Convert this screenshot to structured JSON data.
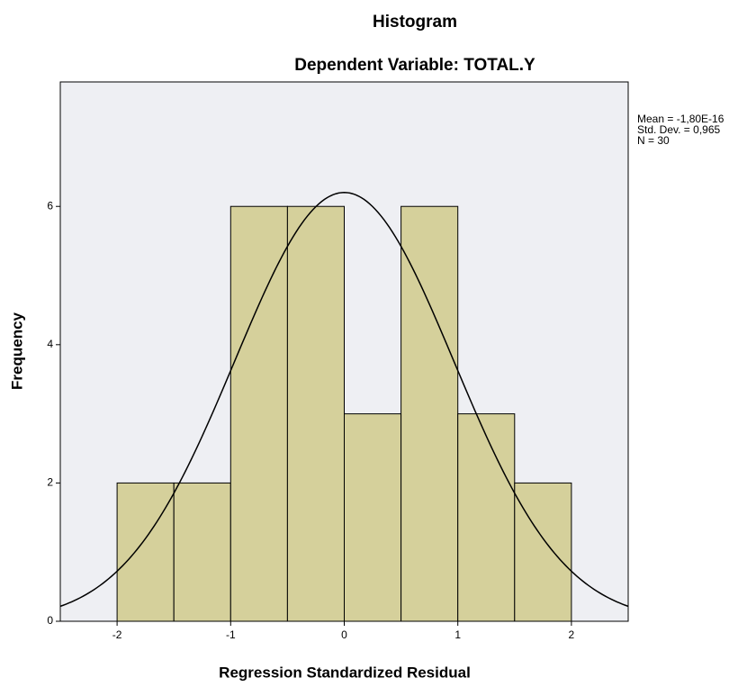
{
  "chart_data": {
    "type": "histogram",
    "title": "Histogram",
    "subtitle": "Dependent Variable: TOTAL.Y",
    "x_label": "Regression Standardized Residual",
    "y_label": "Frequency",
    "bins": [
      -2,
      -1.5,
      -1,
      -0.5,
      0,
      0.5,
      1,
      1.5,
      2
    ],
    "values": [
      2,
      2,
      6,
      6,
      3,
      6,
      3,
      2
    ],
    "color": "#d5d09b",
    "xlim": [
      -2.5,
      2.5
    ],
    "ylim": [
      0,
      7.8
    ],
    "xticks": [
      -2,
      -1,
      0,
      1,
      2
    ],
    "yticks": [
      0,
      2,
      4,
      6
    ],
    "stats": [
      {
        "label": "Mean = -1,80E-16",
        "value": -1.8e-16
      },
      {
        "label": "Std. Dev. = 0,965",
        "value": 0.965
      },
      {
        "label": "N = 30",
        "value": 30
      }
    ]
  }
}
